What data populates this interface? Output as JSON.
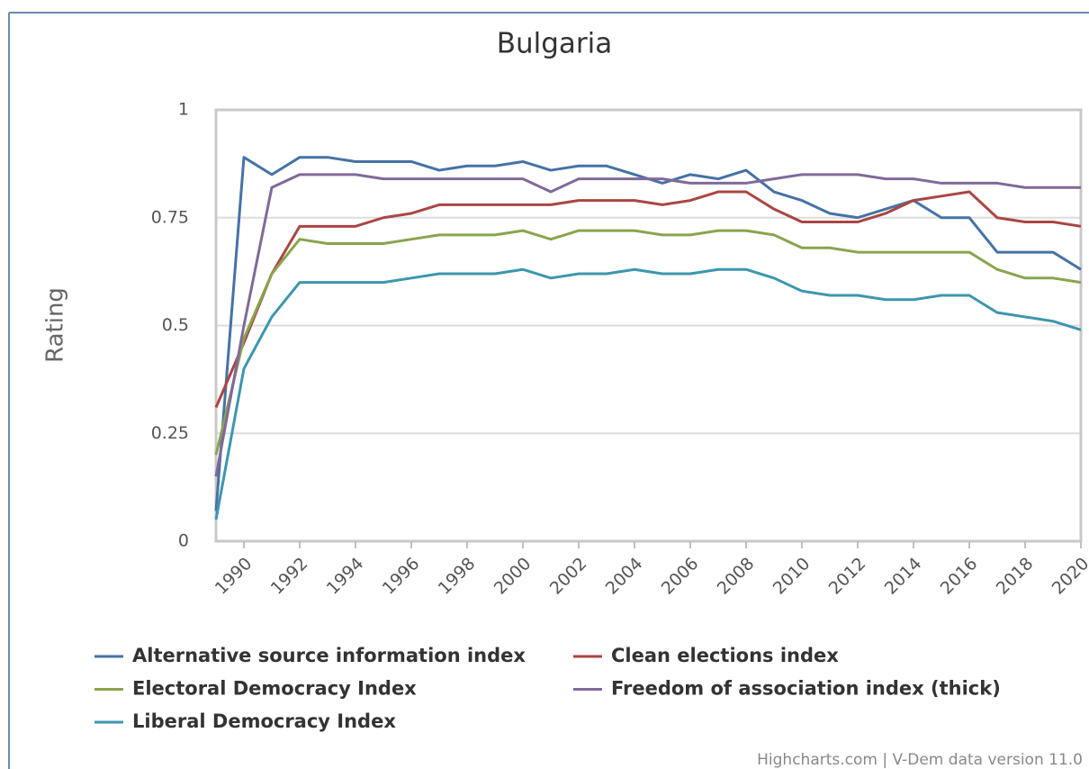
{
  "chart_data": {
    "type": "line",
    "title": "Bulgaria",
    "y_label": "Rating",
    "credits": "Highcharts.com | V-Dem data version 11.0",
    "x": [
      1989,
      1990,
      1991,
      1992,
      1993,
      1994,
      1995,
      1996,
      1997,
      1998,
      1999,
      2000,
      2001,
      2002,
      2003,
      2004,
      2005,
      2006,
      2007,
      2008,
      2009,
      2010,
      2011,
      2012,
      2013,
      2014,
      2015,
      2016,
      2017,
      2018,
      2019,
      2020
    ],
    "xlim": [
      1989,
      2020
    ],
    "xticks": [
      1990,
      1992,
      1994,
      1996,
      1998,
      2000,
      2002,
      2004,
      2006,
      2008,
      2010,
      2012,
      2014,
      2016,
      2018,
      2020
    ],
    "ylim": [
      0,
      1
    ],
    "yticks": [
      0,
      0.25,
      0.5,
      0.75,
      1
    ],
    "grid": true,
    "series": [
      {
        "name": "Alternative source information index",
        "color": "#4572a7",
        "values": [
          0.07,
          0.89,
          0.85,
          0.89,
          0.89,
          0.88,
          0.88,
          0.88,
          0.86,
          0.87,
          0.87,
          0.88,
          0.86,
          0.87,
          0.87,
          0.85,
          0.83,
          0.85,
          0.84,
          0.86,
          0.81,
          0.79,
          0.76,
          0.75,
          0.77,
          0.79,
          0.75,
          0.75,
          0.67,
          0.67,
          0.67,
          0.63
        ]
      },
      {
        "name": "Clean elections index",
        "color": "#aa4643",
        "values": [
          0.31,
          0.46,
          0.62,
          0.73,
          0.73,
          0.73,
          0.75,
          0.76,
          0.78,
          0.78,
          0.78,
          0.78,
          0.78,
          0.79,
          0.79,
          0.79,
          0.78,
          0.79,
          0.81,
          0.81,
          0.77,
          0.74,
          0.74,
          0.74,
          0.76,
          0.79,
          0.8,
          0.81,
          0.75,
          0.74,
          0.74,
          0.73
        ]
      },
      {
        "name": "Electoral Democracy Index",
        "color": "#89a54e",
        "values": [
          0.2,
          0.47,
          0.62,
          0.7,
          0.69,
          0.69,
          0.69,
          0.7,
          0.71,
          0.71,
          0.71,
          0.72,
          0.7,
          0.72,
          0.72,
          0.72,
          0.71,
          0.71,
          0.72,
          0.72,
          0.71,
          0.68,
          0.68,
          0.67,
          0.67,
          0.67,
          0.67,
          0.67,
          0.63,
          0.61,
          0.61,
          0.6
        ]
      },
      {
        "name": "Freedom of association index (thick)",
        "color": "#80699b",
        "values": [
          0.15,
          0.5,
          0.82,
          0.85,
          0.85,
          0.85,
          0.84,
          0.84,
          0.84,
          0.84,
          0.84,
          0.84,
          0.81,
          0.84,
          0.84,
          0.84,
          0.84,
          0.83,
          0.83,
          0.83,
          0.84,
          0.85,
          0.85,
          0.85,
          0.84,
          0.84,
          0.83,
          0.83,
          0.83,
          0.82,
          0.82,
          0.82
        ]
      },
      {
        "name": "Liberal Democracy Index",
        "color": "#3d96ae",
        "values": [
          0.05,
          0.4,
          0.52,
          0.6,
          0.6,
          0.6,
          0.6,
          0.61,
          0.62,
          0.62,
          0.62,
          0.63,
          0.61,
          0.62,
          0.62,
          0.63,
          0.62,
          0.62,
          0.63,
          0.63,
          0.61,
          0.58,
          0.57,
          0.57,
          0.56,
          0.56,
          0.57,
          0.57,
          0.53,
          0.52,
          0.51,
          0.49
        ]
      }
    ]
  }
}
